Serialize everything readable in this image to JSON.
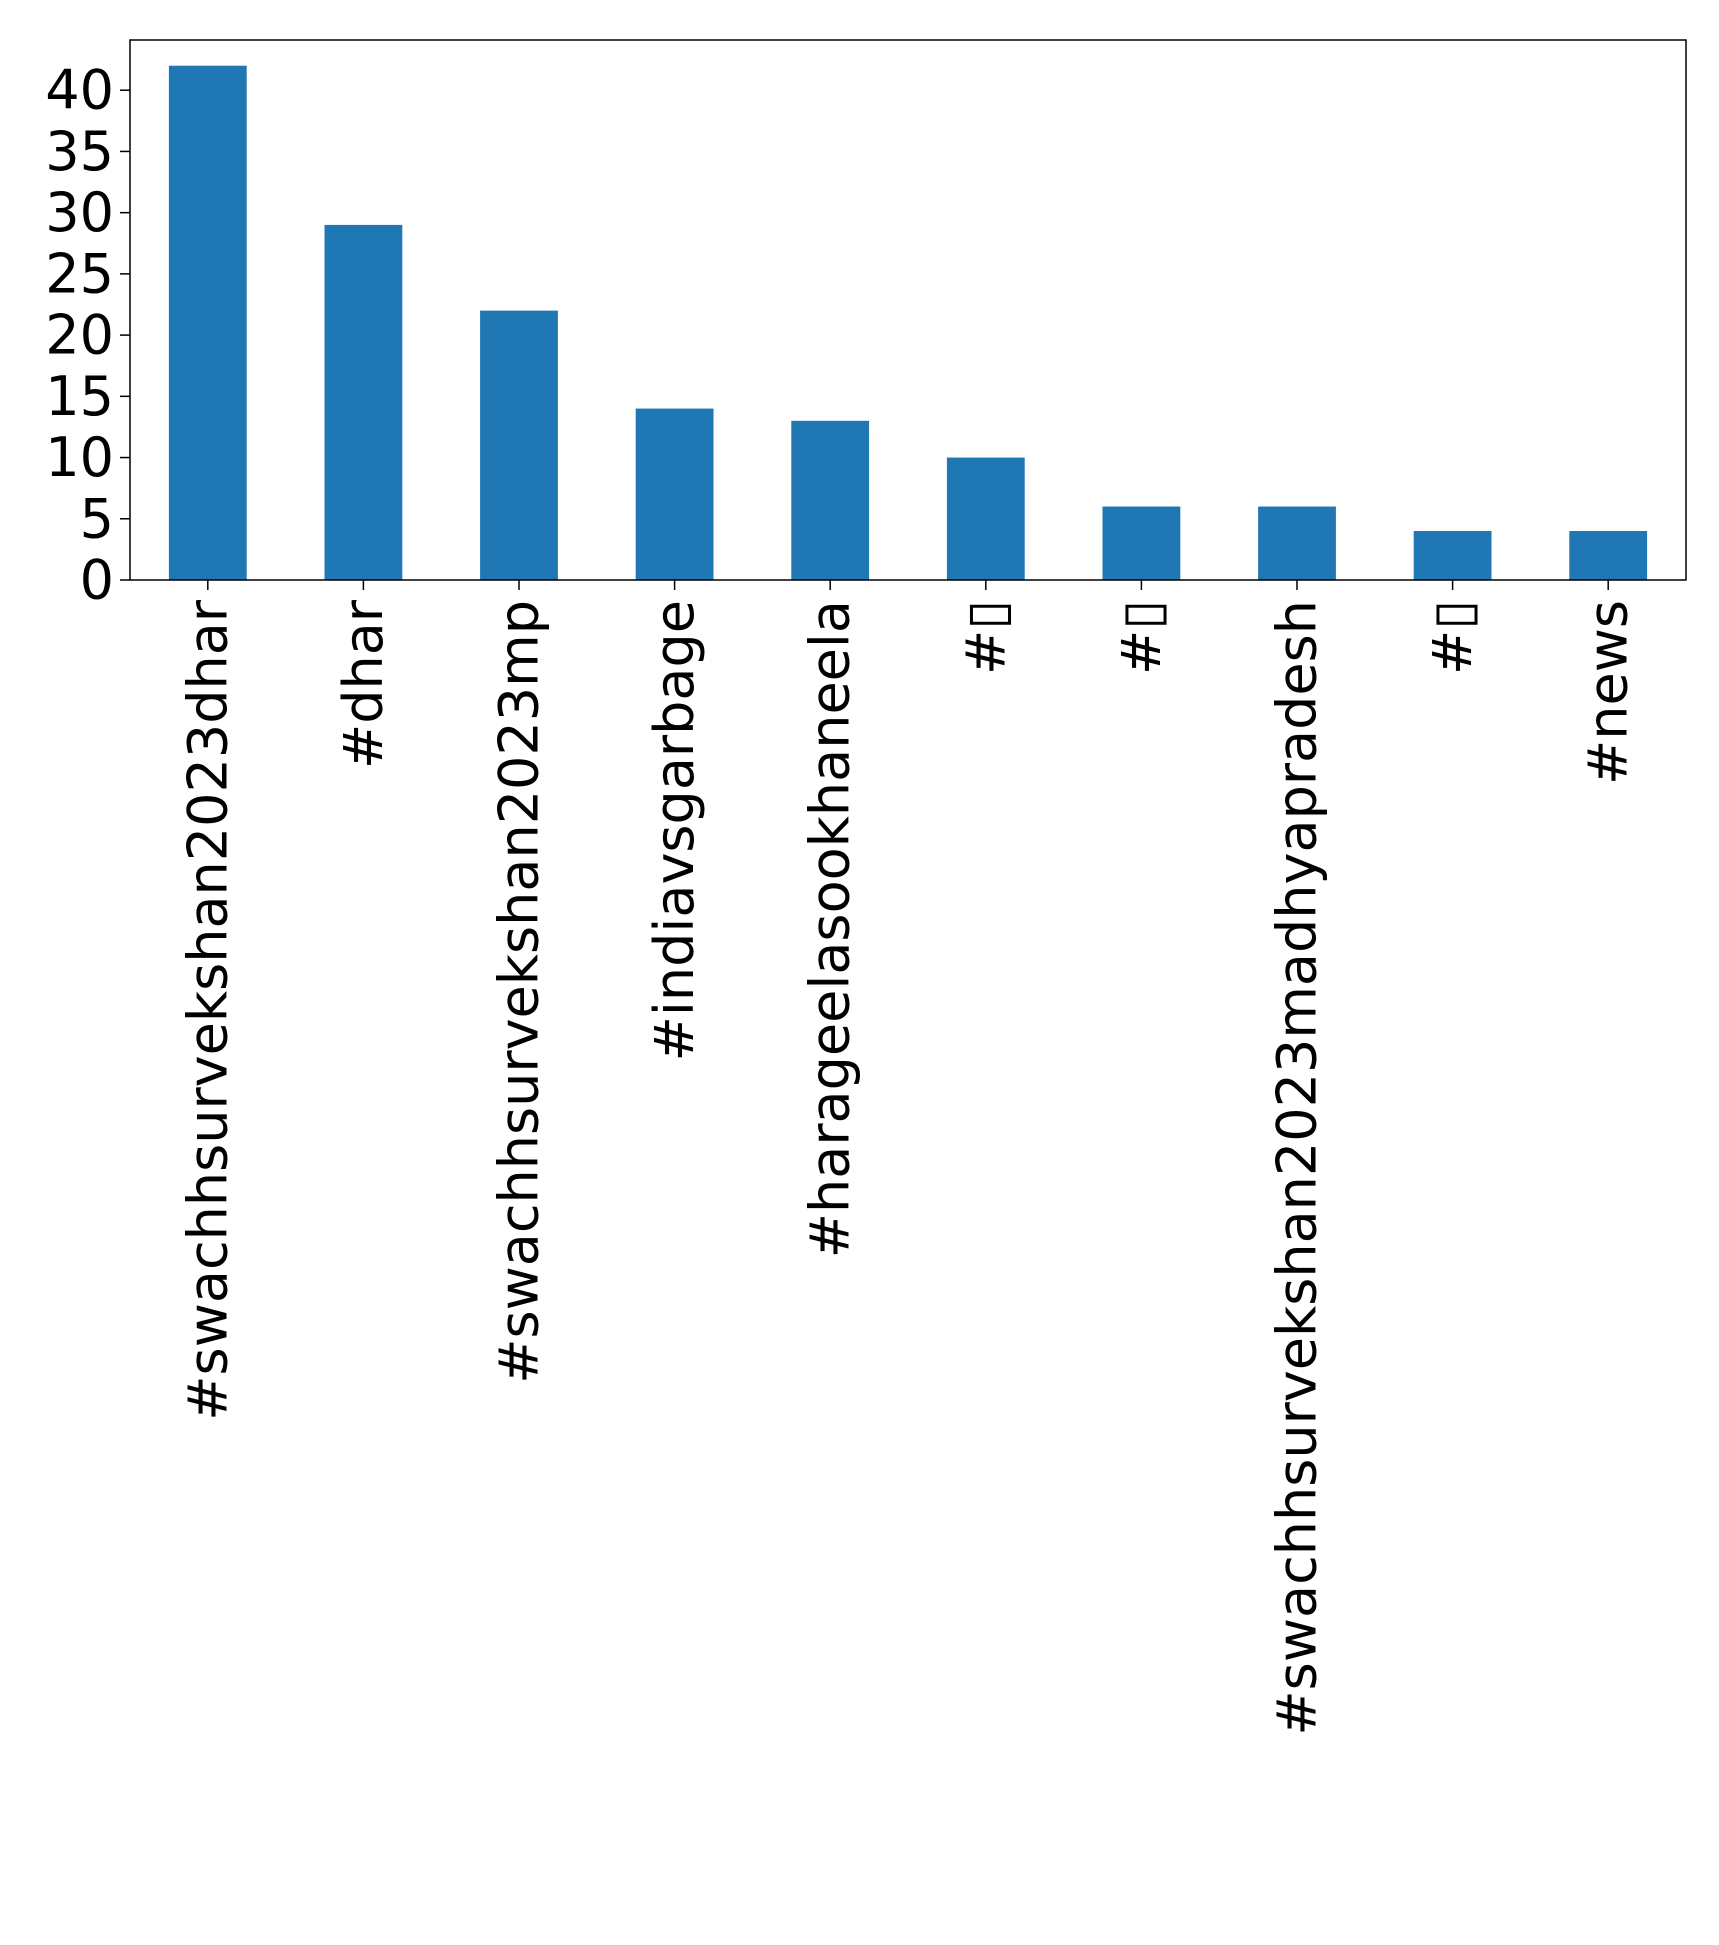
{
  "chart_data": {
    "type": "bar",
    "title": "",
    "xlabel": "",
    "ylabel": "",
    "categories": [
      "#swachhsurvekshan2023dhar",
      "#dhar",
      "#swachhsurvekshan2023mp",
      "#indiavsgarbage",
      "#harageelasookhaneela",
      "#▯",
      "#▯",
      "#swachhsurvekshan2023madhyapradesh",
      "#▯",
      "#news"
    ],
    "values": [
      42,
      29,
      22,
      14,
      13,
      10,
      6,
      6,
      4,
      4
    ],
    "ylim": [
      0,
      44.1
    ],
    "yticks": [
      0,
      5,
      10,
      15,
      20,
      25,
      30,
      35,
      40
    ],
    "grid": false,
    "legend": "none",
    "colors": {
      "bar": "#1f77b4",
      "axis": "#000000",
      "background": "#ffffff"
    }
  }
}
